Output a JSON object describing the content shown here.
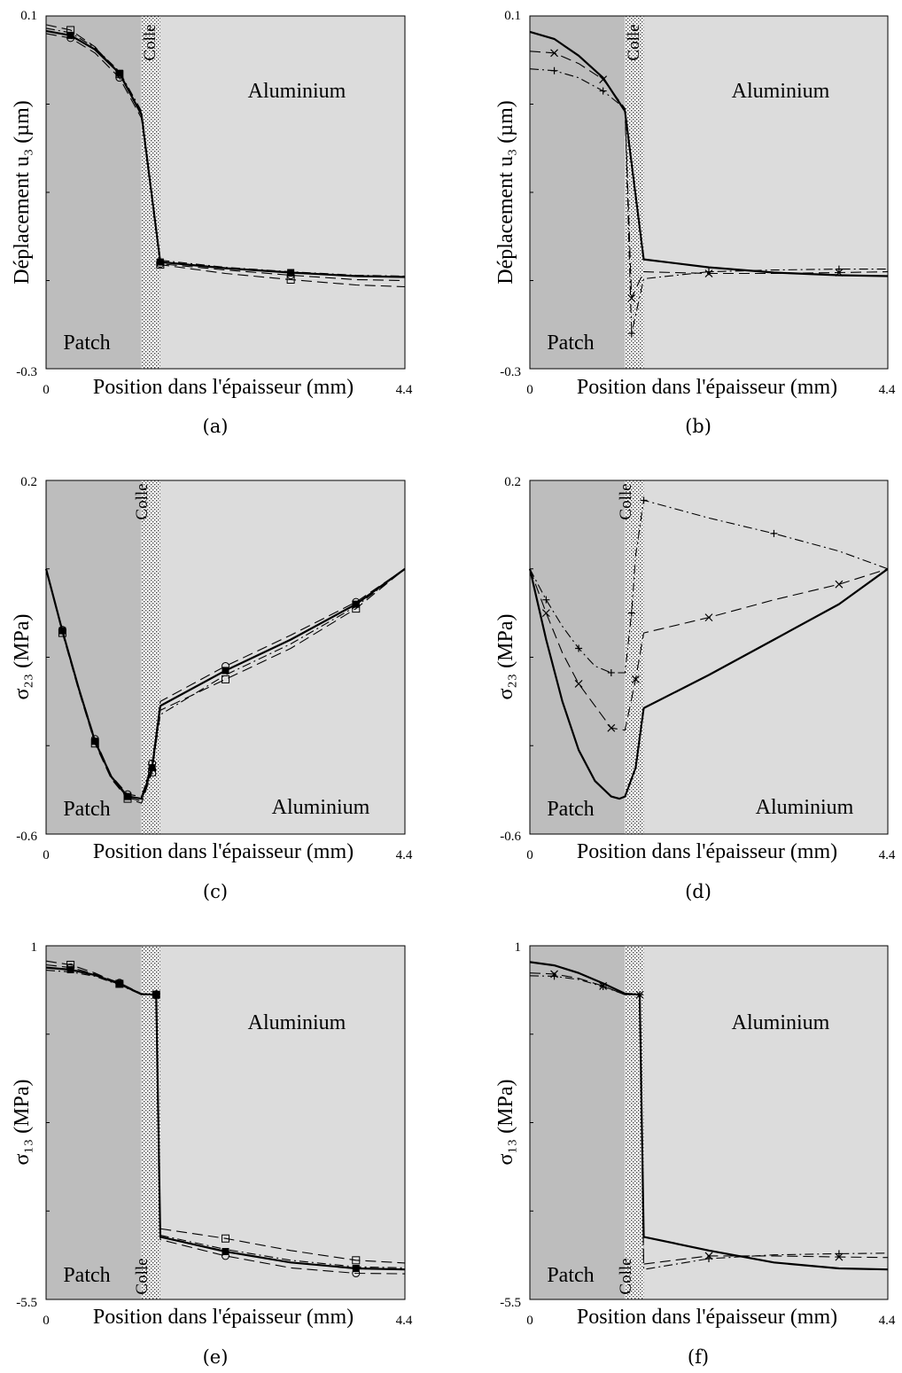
{
  "chart_data": [
    {
      "id": "a",
      "type": "line",
      "panel_label": "(a)",
      "xlabel": "Position dans l'épaisseur (mm)",
      "ylabel": "Déplacement u₃ (µm)",
      "xlim": [
        0,
        4.4
      ],
      "ylim": [
        -0.3,
        0.1
      ],
      "xtick_labels": [
        "0",
        "4.4"
      ],
      "ytick_labels": [
        "0.1",
        "-0.3"
      ],
      "regions": {
        "patch": "Patch",
        "colle": "Colle",
        "aluminium": "Aluminium"
      },
      "region_bounds": {
        "colle_start": 1.17,
        "colle_end": 1.4
      },
      "label_positions": {
        "aluminium": "top-right",
        "patch": "bottom-left",
        "colle": "top"
      },
      "series": [
        {
          "style": "solid-bold",
          "marker": "filled-square",
          "x": [
            0,
            0.3,
            0.6,
            0.9,
            1.17,
            1.4,
            2.2,
            3.0,
            3.8,
            4.4
          ],
          "y": [
            0.083,
            0.078,
            0.062,
            0.035,
            -0.012,
            -0.179,
            -0.186,
            -0.191,
            -0.195,
            -0.196
          ]
        },
        {
          "style": "dashed",
          "marker": "open-square",
          "x": [
            0,
            0.3,
            0.6,
            0.9,
            1.17,
            1.4,
            2.2,
            3.0,
            3.8,
            4.4
          ],
          "y": [
            0.09,
            0.084,
            0.065,
            0.034,
            -0.01,
            -0.182,
            -0.192,
            -0.199,
            -0.205,
            -0.207
          ]
        },
        {
          "style": "dashed",
          "marker": "open-circle",
          "x": [
            0,
            0.3,
            0.6,
            0.9,
            1.17,
            1.4,
            2.2,
            3.0,
            3.8,
            4.4
          ],
          "y": [
            0.08,
            0.075,
            0.058,
            0.03,
            -0.016,
            -0.181,
            -0.188,
            -0.194,
            -0.199,
            -0.2
          ]
        },
        {
          "style": "dash-dot",
          "marker": "none",
          "x": [
            0,
            0.3,
            0.6,
            0.9,
            1.17,
            1.4,
            2.2,
            3.0,
            3.8,
            4.4
          ],
          "y": [
            0.086,
            0.081,
            0.064,
            0.037,
            -0.008,
            -0.177,
            -0.185,
            -0.19,
            -0.194,
            -0.195
          ]
        }
      ]
    },
    {
      "id": "b",
      "type": "line",
      "panel_label": "(b)",
      "xlabel": "Position dans l'épaisseur (mm)",
      "ylabel": "Déplacement u₃ (µm)",
      "xlim": [
        0,
        4.4
      ],
      "ylim": [
        -0.3,
        0.1
      ],
      "xtick_labels": [
        "0",
        "4.4"
      ],
      "ytick_labels": [
        "0.1",
        "-0.3"
      ],
      "regions": {
        "patch": "Patch",
        "colle": "Colle",
        "aluminium": "Aluminium"
      },
      "region_bounds": {
        "colle_start": 1.17,
        "colle_end": 1.4
      },
      "label_positions": {
        "aluminium": "top-right",
        "patch": "bottom-left",
        "colle": "top"
      },
      "series": [
        {
          "style": "solid-bold",
          "marker": "none",
          "x": [
            0,
            0.3,
            0.6,
            0.9,
            1.17,
            1.4,
            2.2,
            3.0,
            3.8,
            4.4
          ],
          "y": [
            0.082,
            0.074,
            0.055,
            0.03,
            -0.008,
            -0.176,
            -0.185,
            -0.191,
            -0.194,
            -0.195
          ]
        },
        {
          "style": "dashed",
          "marker": "x-mark",
          "x": [
            0,
            0.3,
            0.6,
            0.9,
            1.17,
            1.25,
            1.4,
            2.2,
            3.0,
            3.8,
            4.4
          ],
          "y": [
            0.06,
            0.058,
            0.046,
            0.028,
            -0.005,
            -0.22,
            -0.19,
            -0.192,
            -0.192,
            -0.191,
            -0.19
          ]
        },
        {
          "style": "dash-dot",
          "marker": "plus",
          "x": [
            0,
            0.3,
            0.6,
            0.9,
            1.17,
            1.25,
            1.4,
            2.2,
            3.0,
            3.8,
            4.4
          ],
          "y": [
            0.04,
            0.038,
            0.03,
            0.015,
            -0.005,
            -0.26,
            -0.198,
            -0.19,
            -0.188,
            -0.187,
            -0.187
          ]
        }
      ]
    },
    {
      "id": "c",
      "type": "line",
      "panel_label": "(c)",
      "xlabel": "Position dans l'épaisseur (mm)",
      "ylabel": "σ₂₃ (MPa)",
      "xlim": [
        0,
        4.4
      ],
      "ylim": [
        -0.6,
        0.2
      ],
      "xtick_labels": [
        "0",
        "4.4"
      ],
      "ytick_labels": [
        "0.2",
        "-0.6"
      ],
      "regions": {
        "patch": "Patch",
        "colle": "Colle",
        "aluminium": "Aluminium"
      },
      "region_bounds": {
        "colle_start": 1.17,
        "colle_end": 1.4
      },
      "label_positions": {
        "aluminium": "bottom-right",
        "patch": "bottom-left",
        "colle": "top"
      },
      "series": [
        {
          "style": "solid-bold",
          "marker": "filled-square",
          "x": [
            0,
            0.2,
            0.4,
            0.6,
            0.8,
            1.0,
            1.17,
            1.3,
            1.4,
            2.2,
            3.0,
            3.8,
            4.4
          ],
          "y": [
            0.0,
            -0.14,
            -0.27,
            -0.39,
            -0.47,
            -0.515,
            -0.52,
            -0.45,
            -0.31,
            -0.23,
            -0.16,
            -0.08,
            0.0
          ]
        },
        {
          "style": "dashed",
          "marker": "open-square",
          "x": [
            0,
            0.2,
            0.4,
            0.6,
            0.8,
            1.0,
            1.17,
            1.3,
            1.4,
            2.2,
            3.0,
            3.8,
            4.4
          ],
          "y": [
            0.0,
            -0.145,
            -0.275,
            -0.395,
            -0.475,
            -0.52,
            -0.53,
            -0.46,
            -0.32,
            -0.25,
            -0.18,
            -0.09,
            0.0
          ]
        },
        {
          "style": "dashed",
          "marker": "open-circle",
          "x": [
            0,
            0.2,
            0.4,
            0.6,
            0.8,
            1.0,
            1.17,
            1.3,
            1.4,
            2.2,
            3.0,
            3.8,
            4.4
          ],
          "y": [
            0.0,
            -0.138,
            -0.268,
            -0.385,
            -0.468,
            -0.51,
            -0.515,
            -0.44,
            -0.3,
            -0.22,
            -0.15,
            -0.075,
            0.0
          ]
        },
        {
          "style": "dash-dot",
          "marker": "none",
          "x": [
            0,
            0.2,
            0.4,
            0.6,
            0.8,
            1.0,
            1.17,
            1.3,
            1.4,
            2.2,
            3.0,
            3.8,
            4.4
          ],
          "y": [
            0.0,
            -0.142,
            -0.272,
            -0.392,
            -0.472,
            -0.518,
            -0.525,
            -0.455,
            -0.33,
            -0.24,
            -0.17,
            -0.085,
            0.0
          ]
        }
      ]
    },
    {
      "id": "d",
      "type": "line",
      "panel_label": "(d)",
      "xlabel": "Position dans l'épaisseur (mm)",
      "ylabel": "σ₂₃ (MPa)",
      "xlim": [
        0,
        4.4
      ],
      "ylim": [
        -0.6,
        0.2
      ],
      "xtick_labels": [
        "0",
        "4.4"
      ],
      "ytick_labels": [
        "0.2",
        "-0.6"
      ],
      "regions": {
        "patch": "Patch",
        "colle": "Colle",
        "aluminium": "Aluminium"
      },
      "region_bounds": {
        "colle_start": 1.17,
        "colle_end": 1.4
      },
      "label_positions": {
        "aluminium": "bottom-right",
        "patch": "bottom-left",
        "colle": "top"
      },
      "series": [
        {
          "style": "solid-bold",
          "marker": "none",
          "x": [
            0,
            0.2,
            0.4,
            0.6,
            0.8,
            1.0,
            1.1,
            1.17,
            1.3,
            1.4,
            2.2,
            3.0,
            3.8,
            4.4
          ],
          "y": [
            0.0,
            -0.16,
            -0.3,
            -0.41,
            -0.48,
            -0.515,
            -0.52,
            -0.515,
            -0.45,
            -0.315,
            -0.24,
            -0.16,
            -0.08,
            0.0
          ]
        },
        {
          "style": "dashed",
          "marker": "x-mark",
          "x": [
            0,
            0.2,
            0.4,
            0.6,
            0.8,
            1.0,
            1.17,
            1.3,
            1.4,
            2.2,
            3.0,
            3.8,
            4.4
          ],
          "y": [
            0.0,
            -0.1,
            -0.19,
            -0.26,
            -0.31,
            -0.36,
            -0.365,
            -0.25,
            -0.145,
            -0.11,
            -0.07,
            -0.035,
            0.0
          ]
        },
        {
          "style": "dash-dot",
          "marker": "plus",
          "x": [
            0,
            0.2,
            0.4,
            0.6,
            0.8,
            1.0,
            1.17,
            1.25,
            1.3,
            1.4,
            2.2,
            3.0,
            3.8,
            4.4
          ],
          "y": [
            0.0,
            -0.07,
            -0.13,
            -0.18,
            -0.22,
            -0.235,
            -0.235,
            -0.1,
            0.03,
            0.155,
            0.115,
            0.08,
            0.04,
            0.0
          ]
        }
      ]
    },
    {
      "id": "e",
      "type": "line",
      "panel_label": "(e)",
      "xlabel": "Position dans l'épaisseur (mm)",
      "ylabel": "σ₁₃ (MPa)",
      "xlim": [
        0,
        4.4
      ],
      "ylim": [
        -5.5,
        1
      ],
      "xtick_labels": [
        "0",
        "4.4"
      ],
      "ytick_labels": [
        "1",
        "-5.5"
      ],
      "regions": {
        "patch": "Patch",
        "colle": "Colle",
        "aluminium": "Aluminium"
      },
      "region_bounds": {
        "colle_start": 1.17,
        "colle_end": 1.4
      },
      "label_positions": {
        "aluminium": "top-right",
        "patch": "bottom-left",
        "colle": "bottom"
      },
      "series": [
        {
          "style": "solid-bold",
          "marker": "filled-square",
          "x": [
            0,
            0.3,
            0.6,
            0.9,
            1.17,
            1.35,
            1.4,
            2.2,
            3.0,
            3.8,
            4.4
          ],
          "y": [
            0.6,
            0.56,
            0.46,
            0.3,
            0.11,
            0.1,
            -4.35,
            -4.62,
            -4.82,
            -4.93,
            -4.95
          ]
        },
        {
          "style": "dashed",
          "marker": "open-square",
          "x": [
            0,
            0.3,
            0.6,
            0.9,
            1.17,
            1.35,
            1.4,
            2.2,
            3.0,
            3.8,
            4.4
          ],
          "y": [
            0.72,
            0.65,
            0.5,
            0.3,
            0.1,
            0.1,
            -4.2,
            -4.38,
            -4.6,
            -4.78,
            -4.83
          ]
        },
        {
          "style": "dashed",
          "marker": "open-circle",
          "x": [
            0,
            0.3,
            0.6,
            0.9,
            1.17,
            1.35,
            1.4,
            2.2,
            3.0,
            3.8,
            4.4
          ],
          "y": [
            0.65,
            0.6,
            0.48,
            0.32,
            0.12,
            0.11,
            -4.4,
            -4.7,
            -4.92,
            -5.02,
            -5.03
          ]
        },
        {
          "style": "dash-dot",
          "marker": "none",
          "x": [
            0,
            0.3,
            0.6,
            0.9,
            1.17,
            1.35,
            1.4,
            2.2,
            3.0,
            3.8,
            4.4
          ],
          "y": [
            0.55,
            0.52,
            0.44,
            0.28,
            0.1,
            0.1,
            -4.32,
            -4.58,
            -4.78,
            -4.9,
            -4.92
          ]
        }
      ]
    },
    {
      "id": "f",
      "type": "line",
      "panel_label": "(f)",
      "xlabel": "Position dans l'épaisseur (mm)",
      "ylabel": "σ₁₃ (MPa)",
      "xlim": [
        0,
        4.4
      ],
      "ylim": [
        -5.5,
        1
      ],
      "xtick_labels": [
        "0",
        "4.4"
      ],
      "ytick_labels": [
        "1",
        "-5.5"
      ],
      "regions": {
        "patch": "Patch",
        "colle": "Colle",
        "aluminium": "Aluminium"
      },
      "region_bounds": {
        "colle_start": 1.17,
        "colle_end": 1.4
      },
      "label_positions": {
        "aluminium": "top-right",
        "patch": "bottom-left",
        "colle": "bottom"
      },
      "series": [
        {
          "style": "solid-bold",
          "marker": "none",
          "x": [
            0,
            0.3,
            0.6,
            0.9,
            1.17,
            1.35,
            1.4,
            2.2,
            3.0,
            3.8,
            4.4
          ],
          "y": [
            0.7,
            0.64,
            0.5,
            0.31,
            0.12,
            0.1,
            -4.35,
            -4.6,
            -4.82,
            -4.93,
            -4.95
          ]
        },
        {
          "style": "dashed",
          "marker": "x-mark",
          "x": [
            0,
            0.3,
            0.6,
            0.9,
            1.17,
            1.35,
            1.4,
            2.2,
            3.0,
            3.8,
            4.4
          ],
          "y": [
            0.5,
            0.48,
            0.4,
            0.26,
            0.1,
            0.1,
            -4.85,
            -4.7,
            -4.7,
            -4.72,
            -4.73
          ]
        },
        {
          "style": "dash-dot",
          "marker": "plus",
          "x": [
            0,
            0.3,
            0.6,
            0.9,
            1.17,
            1.35,
            1.4,
            2.2,
            3.0,
            3.8,
            4.4
          ],
          "y": [
            0.45,
            0.44,
            0.38,
            0.25,
            0.1,
            0.1,
            -4.95,
            -4.75,
            -4.68,
            -4.66,
            -4.65
          ]
        }
      ]
    }
  ]
}
